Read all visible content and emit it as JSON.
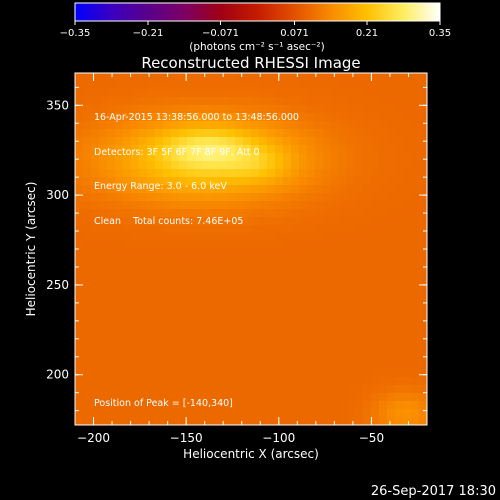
{
  "colorbar": {
    "ticks": [
      "-0.35",
      "-0.21",
      "-0.071",
      "0.071",
      "0.21",
      "0.35"
    ],
    "min": -0.35,
    "max": 0.35,
    "unit_label": "(photons cm⁻² s⁻¹ asec⁻²)",
    "colormap": [
      "#0000ff",
      "#3a00c0",
      "#5a008c",
      "#7c0064",
      "#a00014",
      "#c51c00",
      "#e35000",
      "#f98a00",
      "#ffc000",
      "#ffee60",
      "#ffffff"
    ]
  },
  "chart_data": {
    "type": "heatmap",
    "title": "Reconstructed RHESSI Image",
    "xlabel": "Heliocentric X (arcsec)",
    "ylabel": "Heliocentric Y (arcsec)",
    "xlim": [
      -210,
      -20
    ],
    "ylim": [
      172,
      368
    ],
    "x_ticks": [
      -200,
      -150,
      -100,
      -50
    ],
    "y_ticks": [
      200,
      250,
      300,
      350
    ],
    "x_tick_labels": [
      "-200",
      "-150",
      "-100",
      "-50"
    ],
    "y_tick_labels": [
      "200",
      "250",
      "300",
      "350"
    ],
    "peak_position": [
      -140,
      340
    ],
    "background_level": 0.1,
    "sources": [
      {
        "x": -140,
        "y": 320,
        "sx": 38,
        "sy": 16,
        "amp": 0.13
      },
      {
        "x": -138,
        "y": 326,
        "sx": 17,
        "sy": 8,
        "amp": 0.07
      },
      {
        "x": -110,
        "y": 317,
        "sx": 12,
        "sy": 7,
        "amp": 0.035
      },
      {
        "x": -32,
        "y": 178,
        "sx": 12,
        "sy": 9,
        "amp": 0.05
      }
    ],
    "info_lines": [
      "16-Apr-2015 13:38:56.000 to 13:48:56.000",
      "Detectors: 3F 5F 6F 7F 8F 9F, Att 0",
      "Energy Range: 3.0 - 6.0 keV",
      "Clean    Total counts: 7.46E+05"
    ],
    "peak_label": "Position of Peak = [-140,340]"
  },
  "footer": {
    "timestamp": "26-Sep-2017 18:30"
  }
}
